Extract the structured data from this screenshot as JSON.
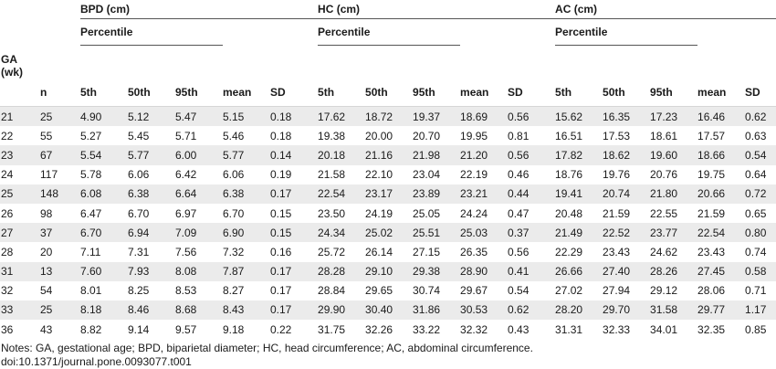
{
  "groups": {
    "bpd": "BPD (cm)",
    "hc": "HC (cm)",
    "ac": "AC (cm)"
  },
  "percentile_label": "Percentile",
  "columns": {
    "ga_line1": "GA",
    "ga_line2": "(wk)",
    "n": "n",
    "p5": "5th",
    "p50": "50th",
    "p95": "95th",
    "mean": "mean",
    "sd": "SD"
  },
  "rows": [
    [
      "21",
      "25",
      "4.90",
      "5.12",
      "5.47",
      "5.15",
      "0.18",
      "17.62",
      "18.72",
      "19.37",
      "18.69",
      "0.56",
      "15.62",
      "16.35",
      "17.23",
      "16.46",
      "0.62"
    ],
    [
      "22",
      "55",
      "5.27",
      "5.45",
      "5.71",
      "5.46",
      "0.18",
      "19.38",
      "20.00",
      "20.70",
      "19.95",
      "0.81",
      "16.51",
      "17.53",
      "18.61",
      "17.57",
      "0.63"
    ],
    [
      "23",
      "67",
      "5.54",
      "5.77",
      "6.00",
      "5.77",
      "0.14",
      "20.18",
      "21.16",
      "21.98",
      "21.20",
      "0.56",
      "17.82",
      "18.62",
      "19.60",
      "18.66",
      "0.54"
    ],
    [
      "24",
      "117",
      "5.78",
      "6.06",
      "6.42",
      "6.06",
      "0.19",
      "21.58",
      "22.10",
      "23.04",
      "22.19",
      "0.46",
      "18.76",
      "19.76",
      "20.76",
      "19.75",
      "0.64"
    ],
    [
      "25",
      "148",
      "6.08",
      "6.38",
      "6.64",
      "6.38",
      "0.17",
      "22.54",
      "23.17",
      "23.89",
      "23.21",
      "0.44",
      "19.41",
      "20.74",
      "21.80",
      "20.66",
      "0.72"
    ],
    [
      "26",
      "98",
      "6.47",
      "6.70",
      "6.97",
      "6.70",
      "0.15",
      "23.50",
      "24.19",
      "25.05",
      "24.24",
      "0.47",
      "20.48",
      "21.59",
      "22.55",
      "21.59",
      "0.65"
    ],
    [
      "27",
      "37",
      "6.70",
      "6.94",
      "7.09",
      "6.90",
      "0.15",
      "24.34",
      "25.02",
      "25.51",
      "25.03",
      "0.37",
      "21.49",
      "22.52",
      "23.77",
      "22.54",
      "0.80"
    ],
    [
      "28",
      "20",
      "7.11",
      "7.31",
      "7.56",
      "7.32",
      "0.16",
      "25.72",
      "26.14",
      "27.15",
      "26.35",
      "0.56",
      "22.29",
      "23.43",
      "24.62",
      "23.43",
      "0.74"
    ],
    [
      "31",
      "13",
      "7.60",
      "7.93",
      "8.08",
      "7.87",
      "0.17",
      "28.28",
      "29.10",
      "29.38",
      "28.90",
      "0.41",
      "26.66",
      "27.40",
      "28.26",
      "27.45",
      "0.58"
    ],
    [
      "32",
      "54",
      "8.01",
      "8.25",
      "8.53",
      "8.27",
      "0.17",
      "28.84",
      "29.65",
      "30.74",
      "29.67",
      "0.54",
      "27.02",
      "27.94",
      "29.12",
      "28.06",
      "0.71"
    ],
    [
      "33",
      "25",
      "8.18",
      "8.46",
      "8.68",
      "8.43",
      "0.17",
      "29.90",
      "30.40",
      "31.86",
      "30.53",
      "0.62",
      "28.20",
      "29.70",
      "31.58",
      "29.77",
      "1.17"
    ],
    [
      "36",
      "43",
      "8.82",
      "9.14",
      "9.57",
      "9.18",
      "0.22",
      "31.75",
      "32.26",
      "33.22",
      "32.32",
      "0.43",
      "31.31",
      "32.33",
      "34.01",
      "32.35",
      "0.85"
    ]
  ],
  "notes": {
    "text": "Notes: GA, gestational age; BPD, biparietal diameter; HC, head circumference; AC, abdominal circumference.",
    "doi": "doi:10.1371/journal.pone.0093077.t001"
  }
}
